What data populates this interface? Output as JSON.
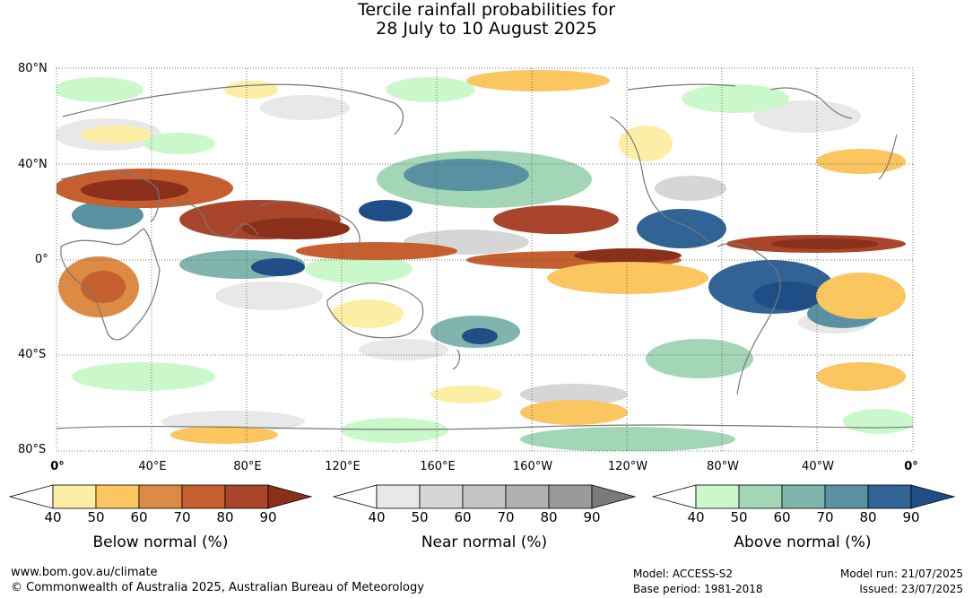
{
  "title": {
    "line1": "Tercile rainfall probabilities for",
    "line2": "28 July to 10 August 2025"
  },
  "map": {
    "lat_labels": [
      "80°N",
      "40°N",
      "0°",
      "40°S",
      "80°S"
    ],
    "lon_labels": [
      "0°",
      "40°E",
      "80°E",
      "120°E",
      "160°E",
      "160°W",
      "120°W",
      "80°W",
      "40°W",
      "0°"
    ],
    "colors": {
      "land_outline": "#777777",
      "grid": "#555555"
    }
  },
  "legends": [
    {
      "title": "Below normal (%)",
      "ticks": [
        "40",
        "50",
        "60",
        "70",
        "80",
        "90"
      ],
      "colors": [
        "#fdeea6",
        "#fbc55f",
        "#dd8a44",
        "#c55f30",
        "#a9452a",
        "#8a2f1a"
      ]
    },
    {
      "title": "Near normal (%)",
      "ticks": [
        "40",
        "50",
        "60",
        "70",
        "80",
        "90"
      ],
      "colors": [
        "#e8e8e8",
        "#d6d6d6",
        "#c4c4c4",
        "#b0b0b0",
        "#9a9a9a",
        "#7a7a7a"
      ]
    },
    {
      "title": "Above normal (%)",
      "ticks": [
        "40",
        "50",
        "60",
        "70",
        "80",
        "90"
      ],
      "colors": [
        "#cbf8cb",
        "#a3d6b6",
        "#80b5ae",
        "#5a91a2",
        "#326396",
        "#1f4e86"
      ]
    }
  ],
  "footer": {
    "website": "www.bom.gov.au/climate",
    "copyright": "© Commonwealth of Australia 2025, Australian Bureau of Meteorology",
    "model": "Model: ACCESS-S2",
    "base_period": "Base period: 1981-2018",
    "model_run": "Model run: 21/07/2025",
    "issued": "Issued: 23/07/2025"
  }
}
